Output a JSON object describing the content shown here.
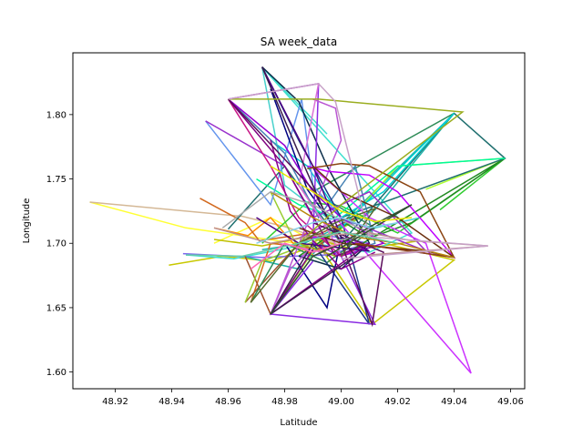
{
  "chart_data": {
    "type": "line",
    "title": "SA week_data",
    "xlabel": "Latitude",
    "ylabel": "Longitude",
    "xlim": [
      48.905,
      49.065
    ],
    "ylim": [
      1.587,
      1.848
    ],
    "xticks": [
      "48.92",
      "48.94",
      "48.96",
      "48.98",
      "49.00",
      "49.02",
      "49.04",
      "49.06"
    ],
    "yticks": [
      "1.60",
      "1.65",
      "1.70",
      "1.75",
      "1.80"
    ],
    "grid": false,
    "series": [
      {
        "color": "#ffff33",
        "x": [
          48.911,
          48.945,
          48.994,
          48.975,
          48.955
        ],
        "y": [
          1.732,
          1.712,
          1.697,
          1.72,
          1.7
        ]
      },
      {
        "color": "#d4b896",
        "x": [
          48.911,
          48.965,
          48.98,
          48.998,
          48.985
        ],
        "y": [
          1.732,
          1.721,
          1.713,
          1.7,
          1.69
        ]
      },
      {
        "color": "#c8c800",
        "x": [
          48.939,
          48.958,
          48.975,
          48.992,
          49.011,
          49.04,
          49.015
        ],
        "y": [
          1.683,
          1.69,
          1.686,
          1.699,
          1.637,
          1.687,
          1.7
        ]
      },
      {
        "color": "#c0c000",
        "x": [
          48.955,
          48.972,
          48.988,
          49.005,
          49.028
        ],
        "y": [
          1.703,
          1.698,
          1.705,
          1.695,
          1.702
        ]
      },
      {
        "color": "#40e0d0",
        "x": [
          48.945,
          48.962,
          48.99,
          49.01,
          49.025,
          48.972,
          48.995
        ],
        "y": [
          1.691,
          1.688,
          1.7,
          1.693,
          1.708,
          1.837,
          1.785
        ]
      },
      {
        "color": "#7b68ee",
        "x": [
          48.944,
          48.972,
          48.995,
          49.01,
          48.99
        ],
        "y": [
          1.692,
          1.689,
          1.691,
          1.7,
          1.708
        ]
      },
      {
        "color": "#20b2aa",
        "x": [
          48.965,
          48.985,
          49.0,
          49.04,
          49.012,
          48.987,
          48.972
        ],
        "y": [
          1.69,
          1.68,
          1.715,
          1.801,
          1.726,
          1.7,
          1.695
        ]
      },
      {
        "color": "#ff8c00",
        "x": [
          48.955,
          48.967,
          48.975,
          48.983,
          48.99
        ],
        "y": [
          1.712,
          1.706,
          1.72,
          1.7,
          1.691
        ]
      },
      {
        "color": "#d2691e",
        "x": [
          48.95,
          48.966,
          48.971,
          48.99,
          48.995,
          48.975,
          48.968
        ],
        "y": [
          1.735,
          1.716,
          1.702,
          1.708,
          1.695,
          1.7,
          1.654
        ]
      },
      {
        "color": "#a0522d",
        "x": [
          48.966,
          48.985,
          49.005,
          48.99,
          48.975,
          48.966
        ],
        "y": [
          1.654,
          1.7,
          1.72,
          1.695,
          1.645,
          1.69
        ]
      },
      {
        "color": "#9acd32",
        "x": [
          48.966,
          48.972,
          48.995,
          49.01,
          48.985,
          48.975
        ],
        "y": [
          1.654,
          1.686,
          1.705,
          1.724,
          1.695,
          1.74
        ]
      },
      {
        "color": "#adff2f",
        "x": [
          48.975,
          48.992,
          49.0,
          49.02,
          49.058,
          49.03
        ],
        "y": [
          1.645,
          1.7,
          1.711,
          1.76,
          1.766,
          1.742
        ]
      },
      {
        "color": "#32cd32",
        "x": [
          48.972,
          48.988,
          49.0,
          49.02,
          49.058,
          49.035
        ],
        "y": [
          1.7,
          1.732,
          1.729,
          1.708,
          1.766,
          1.726
        ]
      },
      {
        "color": "#228b22",
        "x": [
          48.985,
          49.002,
          49.01,
          49.025,
          49.058,
          49.0
        ],
        "y": [
          1.69,
          1.715,
          1.704,
          1.716,
          1.766,
          1.69
        ]
      },
      {
        "color": "#2e8b57",
        "x": [
          48.968,
          48.98,
          48.995,
          49.012,
          48.99,
          49.04
        ],
        "y": [
          1.654,
          1.7,
          1.685,
          1.712,
          1.74,
          1.801
        ]
      },
      {
        "color": "#1f6f6f",
        "x": [
          48.96,
          48.98,
          49.0,
          49.04,
          49.058,
          49.0
        ],
        "y": [
          1.711,
          1.76,
          1.7,
          1.801,
          1.766,
          1.72
        ]
      },
      {
        "color": "#00ced1",
        "x": [
          48.975,
          48.988,
          49.0,
          49.015,
          49.04,
          49.0
        ],
        "y": [
          1.78,
          1.76,
          1.72,
          1.74,
          1.801,
          1.712
        ]
      },
      {
        "color": "#48d1cc",
        "x": [
          48.972,
          48.98,
          48.995,
          49.012,
          49.028
        ],
        "y": [
          1.837,
          1.745,
          1.72,
          1.712,
          1.72
        ]
      },
      {
        "color": "#00fa9a",
        "x": [
          48.97,
          48.985,
          48.998,
          49.02,
          49.058
        ],
        "y": [
          1.75,
          1.73,
          1.72,
          1.76,
          1.766
        ]
      },
      {
        "color": "#6495ed",
        "x": [
          48.952,
          48.975,
          48.986,
          48.99,
          49.0
        ],
        "y": [
          1.795,
          1.73,
          1.812,
          1.745,
          1.72
        ]
      },
      {
        "color": "#4682b4",
        "x": [
          48.96,
          48.98,
          48.992,
          49.005,
          49.012,
          48.998
        ],
        "y": [
          1.812,
          1.77,
          1.72,
          1.76,
          1.7,
          1.69
        ]
      },
      {
        "color": "#1e3a8a",
        "x": [
          48.972,
          48.985,
          49.0,
          49.01,
          48.99
        ],
        "y": [
          1.837,
          1.78,
          1.72,
          1.637,
          1.7
        ]
      },
      {
        "color": "#000080",
        "x": [
          48.975,
          48.988,
          49.0,
          48.995,
          48.98
        ],
        "y": [
          1.82,
          1.742,
          1.705,
          1.65,
          1.7
        ]
      },
      {
        "color": "#0b2e4a",
        "x": [
          48.972,
          48.985,
          48.995,
          49.01,
          49.0,
          48.985
        ],
        "y": [
          1.837,
          1.81,
          1.76,
          1.7,
          1.68,
          1.69
        ]
      },
      {
        "color": "#8a2be2",
        "x": [
          48.96,
          48.992,
          48.99,
          49.0,
          49.012,
          48.975,
          48.99
        ],
        "y": [
          1.812,
          1.824,
          1.7,
          1.69,
          1.637,
          1.645,
          1.686
        ]
      },
      {
        "color": "#9932cc",
        "x": [
          48.952,
          48.98,
          48.99,
          49.01,
          49.03,
          49.0,
          48.985
        ],
        "y": [
          1.795,
          1.76,
          1.72,
          1.74,
          1.694,
          1.72,
          1.704
        ]
      },
      {
        "color": "#ba55d3",
        "x": [
          48.99,
          48.998,
          49.0,
          48.975,
          48.982,
          48.99
        ],
        "y": [
          1.812,
          1.805,
          1.78,
          1.645,
          1.68,
          1.698
        ]
      },
      {
        "color": "#da70d6",
        "x": [
          48.96,
          48.992,
          48.985,
          48.995,
          49.0,
          48.978
        ],
        "y": [
          1.812,
          1.824,
          1.745,
          1.712,
          1.69,
          1.7
        ]
      },
      {
        "color": "#cc33ff",
        "x": [
          48.99,
          49.0,
          49.01,
          49.03,
          49.046,
          48.998
        ],
        "y": [
          1.758,
          1.74,
          1.72,
          1.7,
          1.599,
          1.72
        ]
      },
      {
        "color": "#bf00ff",
        "x": [
          48.988,
          48.995,
          49.01,
          49.02,
          49.04,
          48.99
        ],
        "y": [
          1.76,
          1.756,
          1.753,
          1.74,
          1.689,
          1.705
        ]
      },
      {
        "color": "#9400d3",
        "x": [
          48.96,
          48.98,
          48.99,
          49.0,
          49.015,
          49.0
        ],
        "y": [
          1.812,
          1.776,
          1.74,
          1.72,
          1.7,
          1.69
        ]
      },
      {
        "color": "#c71585",
        "x": [
          48.96,
          48.975,
          48.985,
          48.995,
          49.0,
          49.01
        ],
        "y": [
          1.812,
          1.76,
          1.72,
          1.7,
          1.69,
          1.7
        ]
      },
      {
        "color": "#8b008b",
        "x": [
          48.975,
          48.982,
          48.99,
          48.996,
          49.0,
          49.012
        ],
        "y": [
          1.78,
          1.725,
          1.702,
          1.69,
          1.68,
          1.693
        ]
      },
      {
        "color": "#800080",
        "x": [
          48.96,
          48.98,
          48.998,
          49.01,
          48.975,
          48.99
        ],
        "y": [
          1.812,
          1.76,
          1.69,
          1.7,
          1.645,
          1.695
        ]
      },
      {
        "color": "#4b0082",
        "x": [
          48.972,
          48.99,
          49.0,
          49.01,
          48.985,
          48.97
        ],
        "y": [
          1.837,
          1.76,
          1.705,
          1.694,
          1.7,
          1.72
        ]
      },
      {
        "color": "#5b0e5b",
        "x": [
          48.96,
          48.99,
          49.0,
          49.011,
          49.015,
          48.99
        ],
        "y": [
          1.812,
          1.742,
          1.7,
          1.637,
          1.693,
          1.716
        ]
      },
      {
        "color": "#3b1e4d",
        "x": [
          48.972,
          48.985,
          48.995,
          49.005,
          48.975,
          48.99
        ],
        "y": [
          1.837,
          1.77,
          1.72,
          1.69,
          1.645,
          1.7
        ]
      },
      {
        "color": "#6b2f0f",
        "x": [
          48.99,
          49.0,
          49.02,
          49.04,
          49.03,
          49.0,
          48.985
        ],
        "y": [
          1.76,
          1.74,
          1.72,
          1.689,
          1.694,
          1.7,
          1.712
        ]
      },
      {
        "color": "#8b4513",
        "x": [
          48.988,
          49.0,
          49.01,
          49.028,
          49.04,
          49.005
        ],
        "y": [
          1.758,
          1.762,
          1.76,
          1.74,
          1.689,
          1.7
        ]
      },
      {
        "color": "#b8860b",
        "x": [
          48.975,
          48.99,
          49.005,
          49.02,
          49.04
        ],
        "y": [
          1.74,
          1.72,
          1.705,
          1.7,
          1.689
        ]
      },
      {
        "color": "#9aad1f",
        "x": [
          48.96,
          48.992,
          49.043,
          49.0,
          48.985,
          48.998
        ],
        "y": [
          1.812,
          1.812,
          1.802,
          1.73,
          1.7,
          1.69
        ]
      },
      {
        "color": "#a9a9a9",
        "x": [
          48.958,
          48.975,
          48.99,
          49.0,
          49.012,
          48.998
        ],
        "y": [
          1.712,
          1.74,
          1.73,
          1.718,
          1.707,
          1.702
        ]
      },
      {
        "color": "#bc8f8f",
        "x": [
          48.955,
          48.975,
          48.99,
          49.01,
          49.025,
          49.052,
          49.01
        ],
        "y": [
          1.712,
          1.7,
          1.706,
          1.708,
          1.702,
          1.698,
          1.691
        ]
      },
      {
        "color": "#c8a2c8",
        "x": [
          48.96,
          48.992,
          48.998,
          49.01,
          49.052,
          49.0
        ],
        "y": [
          1.812,
          1.824,
          1.81,
          1.705,
          1.698,
          1.688
        ]
      },
      {
        "color": "#2f4f2f",
        "x": [
          48.975,
          48.99,
          49.0,
          49.012,
          49.025,
          48.995
        ],
        "y": [
          1.645,
          1.69,
          1.7,
          1.715,
          1.73,
          1.69
        ]
      },
      {
        "color": "#556b2f",
        "x": [
          48.968,
          48.985,
          48.998,
          49.012,
          49.0
        ],
        "y": [
          1.654,
          1.7,
          1.716,
          1.727,
          1.69
        ]
      },
      {
        "color": "#66cdaa",
        "x": [
          48.945,
          48.965,
          48.985,
          49.0,
          49.02
        ],
        "y": [
          1.691,
          1.69,
          1.7,
          1.709,
          1.7
        ]
      },
      {
        "color": "#87ceeb",
        "x": [
          48.97,
          48.99,
          49.0,
          49.01,
          49.02
        ],
        "y": [
          1.7,
          1.716,
          1.72,
          1.712,
          1.716
        ]
      },
      {
        "color": "#ff69b4",
        "x": [
          48.968,
          48.98,
          48.99,
          49.0
        ],
        "y": [
          1.68,
          1.7,
          1.693,
          1.7
        ]
      },
      {
        "color": "#e6e600",
        "x": [
          48.975,
          48.99,
          49.0,
          49.012,
          49.025
        ],
        "y": [
          1.76,
          1.74,
          1.725,
          1.717,
          1.72
        ]
      }
    ]
  }
}
